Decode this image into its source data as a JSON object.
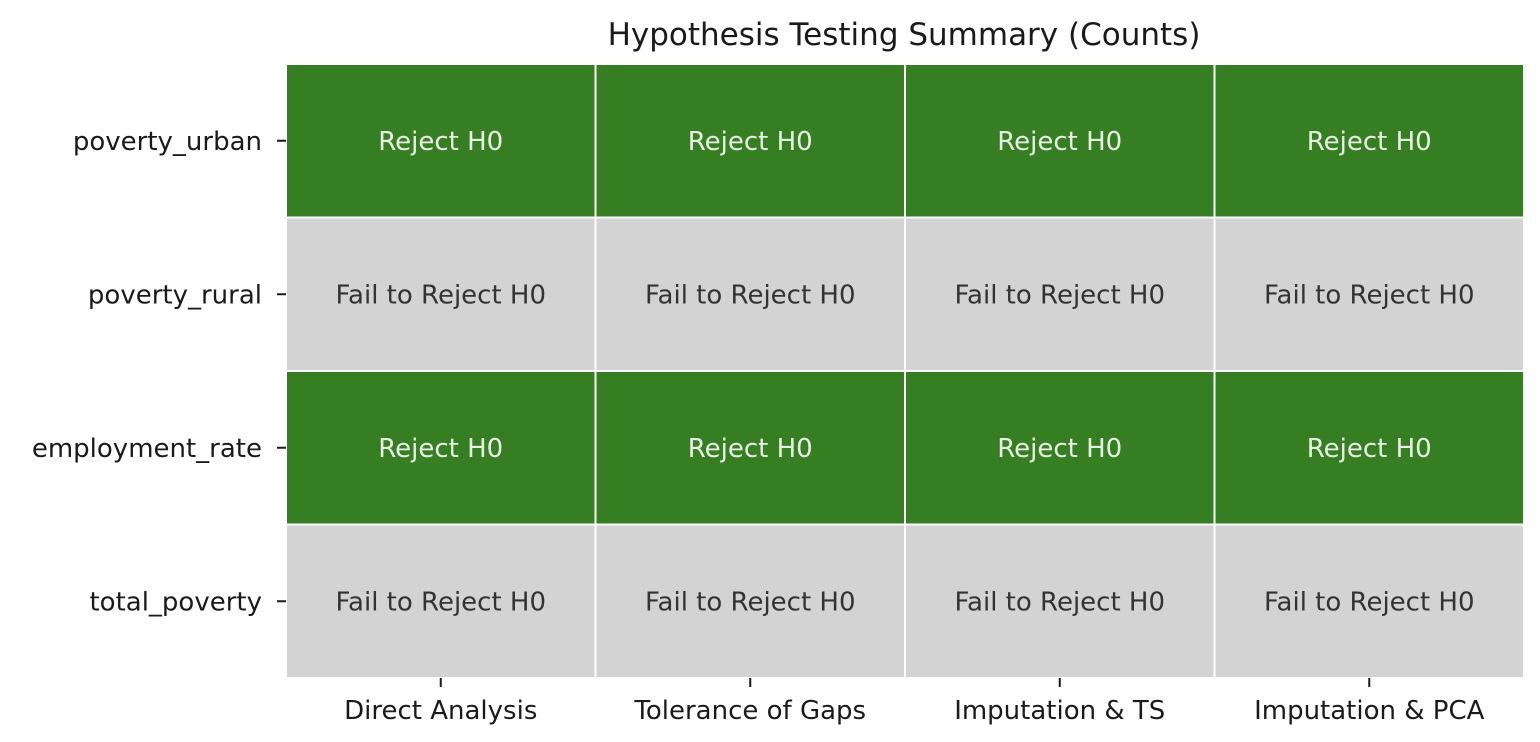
{
  "chart_data": {
    "type": "heatmap",
    "title": "Hypothesis Testing Summary (Counts)",
    "xlabel": "",
    "ylabel": "",
    "columns": [
      "Direct Analysis",
      "Tolerance of Gaps",
      "Imputation & TS",
      "Imputation & PCA"
    ],
    "rows": [
      "poverty_urban",
      "poverty_rural",
      "employment_rate",
      "total_poverty"
    ],
    "cells": [
      [
        "Reject H0",
        "Reject H0",
        "Reject H0",
        "Reject H0"
      ],
      [
        "Fail to Reject H0",
        "Fail to Reject H0",
        "Fail to Reject H0",
        "Fail to Reject H0"
      ],
      [
        "Reject H0",
        "Reject H0",
        "Reject H0",
        "Reject H0"
      ],
      [
        "Fail to Reject H0",
        "Fail to Reject H0",
        "Fail to Reject H0",
        "Fail to Reject H0"
      ]
    ],
    "category_colors": {
      "Reject H0": "#367e22",
      "Fail to Reject H0": "#d3d3d3"
    },
    "text_colors": {
      "Reject H0": "#e8f2e4",
      "Fail to Reject H0": "#333333"
    },
    "cell_separator_color": "#ffffff",
    "colorbar": false,
    "grid": false
  }
}
